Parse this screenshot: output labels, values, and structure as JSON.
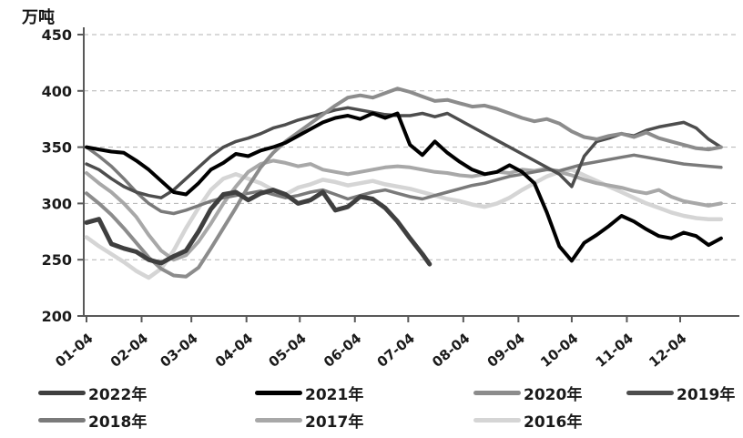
{
  "title": {
    "unit_label": "万吨"
  },
  "chart_data": {
    "type": "line",
    "title": "",
    "xlabel": "",
    "ylabel": "万吨",
    "ylim": [
      200,
      450
    ],
    "y_ticks": [
      450,
      400,
      350,
      300,
      250,
      200
    ],
    "grid": "horizontal dashed",
    "legend_position": "bottom",
    "x_tick_labels": [
      "01-04",
      "02-04",
      "03-04",
      "04-04",
      "05-04",
      "06-04",
      "07-04",
      "08-04",
      "09-04",
      "10-04",
      "11-04",
      "12-04"
    ],
    "x_tick_doys": [
      4,
      35,
      63,
      94,
      124,
      155,
      185,
      216,
      247,
      277,
      308,
      338
    ],
    "week_doys": [
      4,
      11,
      18,
      25,
      32,
      39,
      46,
      53,
      60,
      67,
      74,
      81,
      88,
      95,
      102,
      109,
      116,
      123,
      130,
      137,
      144,
      151,
      158,
      165,
      172,
      179,
      186,
      193,
      200,
      207,
      214,
      221,
      228,
      235,
      242,
      249,
      256,
      263,
      270,
      277,
      284,
      291,
      298,
      305,
      312,
      319,
      326,
      333,
      340,
      347,
      354,
      361
    ],
    "series": [
      {
        "name": "2022年",
        "color": "#3f3f3f",
        "width": 5,
        "x": [
          4,
          11,
          18,
          25,
          32,
          39,
          46,
          53,
          60,
          67,
          74,
          81,
          88,
          95,
          102,
          109,
          116,
          123,
          130,
          137,
          144,
          151,
          158,
          165,
          172,
          179,
          186,
          193,
          197
        ],
        "values": [
          283,
          286,
          264,
          260,
          257,
          250,
          247,
          253,
          258,
          275,
          295,
          308,
          310,
          303,
          309,
          312,
          308,
          300,
          303,
          310,
          294,
          297,
          306,
          304,
          296,
          284,
          269,
          255,
          246
        ]
      },
      {
        "name": "2021年",
        "color": "#000000",
        "width": 4,
        "values": [
          350,
          348,
          346,
          345,
          338,
          330,
          320,
          310,
          308,
          318,
          330,
          336,
          344,
          342,
          347,
          350,
          354,
          360,
          366,
          372,
          376,
          378,
          375,
          380,
          376,
          380,
          352,
          343,
          355,
          345,
          337,
          330,
          326,
          328,
          334,
          328,
          318,
          292,
          262,
          249,
          265,
          272,
          280,
          289,
          284,
          277,
          271,
          269,
          274,
          271,
          263,
          269
        ]
      },
      {
        "name": "2020年",
        "color": "#8c8c8c",
        "width": 4,
        "values": [
          309,
          300,
          290,
          278,
          265,
          252,
          242,
          236,
          235,
          243,
          260,
          278,
          296,
          315,
          332,
          345,
          355,
          363,
          371,
          379,
          387,
          394,
          396,
          394,
          398,
          402,
          399,
          395,
          391,
          392,
          389,
          386,
          387,
          384,
          380,
          376,
          373,
          375,
          371,
          364,
          359,
          357,
          360,
          362,
          359,
          363,
          358,
          355,
          352,
          349,
          348,
          350
        ]
      },
      {
        "name": "2019年",
        "color": "#4d4d4d",
        "width": 3.5,
        "values": [
          335,
          330,
          322,
          315,
          310,
          307,
          305,
          312,
          322,
          332,
          342,
          350,
          355,
          358,
          362,
          367,
          370,
          374,
          377,
          380,
          383,
          385,
          383,
          381,
          379,
          378,
          378,
          380,
          377,
          380,
          374,
          368,
          362,
          356,
          350,
          344,
          338,
          332,
          326,
          315,
          342,
          355,
          358,
          362,
          360,
          365,
          368,
          370,
          372,
          367,
          357,
          350
        ]
      },
      {
        "name": "2018年",
        "color": "#7a7a7a",
        "width": 3.5,
        "values": [
          350,
          342,
          333,
          322,
          310,
          300,
          293,
          291,
          294,
          298,
          302,
          305,
          307,
          309,
          311,
          308,
          305,
          307,
          310,
          312,
          308,
          304,
          307,
          310,
          312,
          309,
          306,
          304,
          307,
          310,
          313,
          316,
          318,
          321,
          324,
          326,
          328,
          330,
          329,
          332,
          335,
          337,
          339,
          341,
          343,
          341,
          339,
          337,
          335,
          334,
          333,
          332
        ]
      },
      {
        "name": "2017年",
        "color": "#a8a8a8",
        "width": 4,
        "values": [
          327,
          318,
          310,
          300,
          288,
          272,
          258,
          250,
          254,
          266,
          282,
          300,
          315,
          328,
          335,
          338,
          336,
          333,
          335,
          330,
          328,
          326,
          328,
          330,
          332,
          333,
          332,
          330,
          328,
          327,
          325,
          324,
          326,
          328,
          327,
          330,
          329,
          331,
          328,
          325,
          321,
          318,
          316,
          314,
          311,
          309,
          312,
          306,
          302,
          300,
          298,
          300
        ]
      },
      {
        "name": "2016年",
        "color": "#d5d5d5",
        "width": 4.5,
        "values": [
          270,
          262,
          255,
          248,
          240,
          234,
          242,
          258,
          278,
          296,
          312,
          322,
          326,
          322,
          318,
          312,
          308,
          314,
          317,
          321,
          319,
          316,
          318,
          320,
          317,
          315,
          313,
          310,
          307,
          304,
          302,
          299,
          297,
          300,
          305,
          312,
          318,
          324,
          328,
          330,
          325,
          320,
          315,
          310,
          305,
          300,
          296,
          292,
          289,
          287,
          286,
          286
        ]
      }
    ],
    "legend": {
      "rows": [
        [
          0,
          1,
          2,
          3
        ],
        [
          4,
          5,
          6
        ]
      ]
    }
  }
}
